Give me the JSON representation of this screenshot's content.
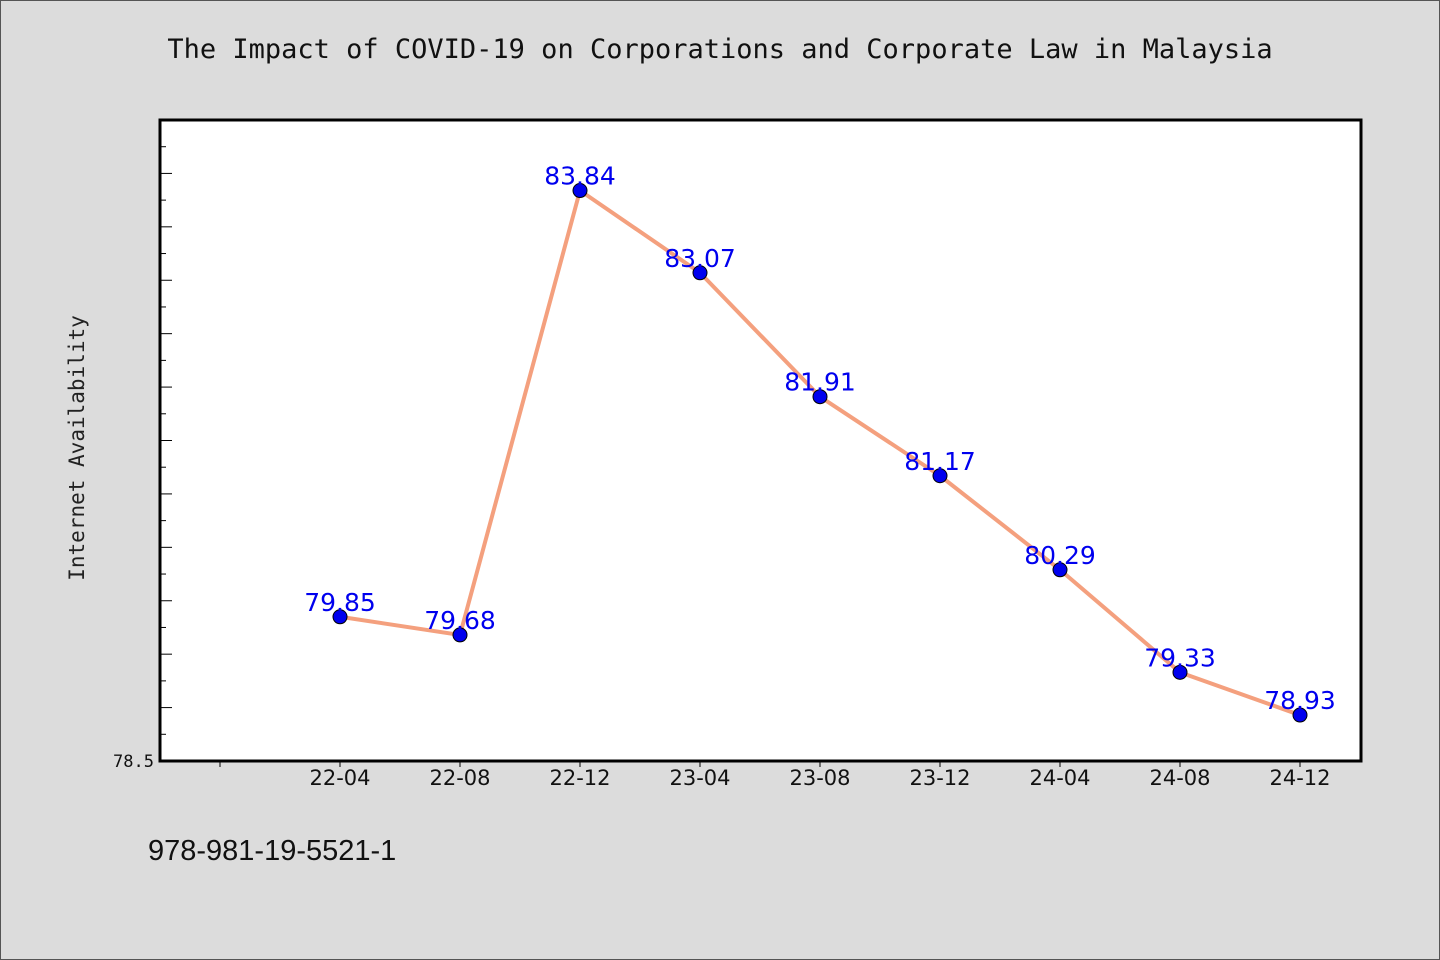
{
  "chart_data": {
    "type": "line",
    "title": "The Impact of COVID-19 on Corporations and Corporate Law in Malaysia",
    "xlabel": "",
    "ylabel": "Internet Availability",
    "categories": [
      "22-04",
      "22-08",
      "22-12",
      "23-04",
      "23-08",
      "23-12",
      "24-04",
      "24-08",
      "24-12"
    ],
    "series": [
      {
        "values": [
          79.85,
          79.68,
          83.84,
          83.07,
          81.91,
          81.17,
          80.29,
          79.33,
          78.93
        ]
      }
    ],
    "ylim": [
      78.5,
      84.5
    ],
    "y_tick_labels": [
      "78.5"
    ],
    "data_labels": [
      "79.85",
      "79.68",
      "83.84",
      "83.07",
      "81.91",
      "81.17",
      "80.29",
      "79.33",
      "78.93"
    ],
    "grid": false,
    "legend": "none",
    "colors": {
      "line": "#f4a07e",
      "marker": "#0000ee",
      "label": "#0000ee",
      "background": "#dcdcdc",
      "plot_area": "#ffffff"
    }
  },
  "footnote": "978-981-19-5521-1"
}
